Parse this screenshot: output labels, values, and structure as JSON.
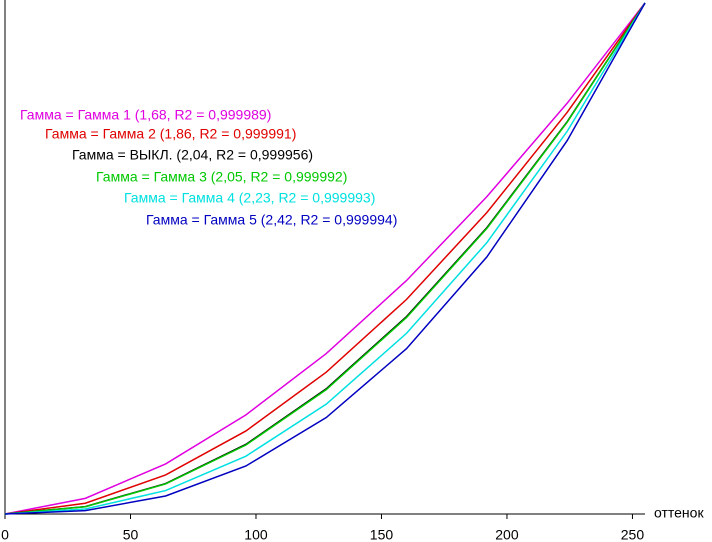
{
  "chart_data": {
    "type": "line",
    "x": [
      0,
      32,
      64,
      96,
      128,
      160,
      192,
      224,
      255
    ],
    "x_label": "оттенок",
    "xlim": [
      0,
      255
    ],
    "xticks": [
      0,
      50,
      100,
      150,
      200,
      250
    ],
    "ylim": [
      0,
      1
    ],
    "series": [
      {
        "name": "Гамма = Гамма 1 (1,68, R2 = 0,999989)",
        "color": "#e000e0",
        "values": [
          0,
          0.0306,
          0.098,
          0.194,
          0.314,
          0.457,
          0.621,
          0.804,
          1
        ]
      },
      {
        "name": "Гамма = Гамма 2 (1,86, R2 = 0,999991)",
        "color": "#e00000",
        "values": [
          0,
          0.0211,
          0.0764,
          0.1625,
          0.2775,
          0.42,
          0.59,
          0.786,
          1
        ]
      },
      {
        "name": "Гамма = ВЫКЛ. (2,04, R2 = 0,999956)",
        "color": "#000000",
        "values": [
          0,
          0.0145,
          0.0596,
          0.1363,
          0.2451,
          0.3864,
          0.5604,
          0.7677,
          1
        ]
      },
      {
        "name": "Гамма = Гамма 3 (2,05, R2 = 0,999992)",
        "color": "#00c800",
        "values": [
          0,
          0.0142,
          0.0588,
          0.135,
          0.2434,
          0.3846,
          0.5589,
          0.7667,
          1
        ]
      },
      {
        "name": "Гамма = Гамма 4 (2,23, R2 = 0,999993)",
        "color": "#00e0e0",
        "values": [
          0,
          0.0098,
          0.0458,
          0.1132,
          0.215,
          0.3537,
          0.5311,
          0.749,
          1
        ]
      },
      {
        "name": "Гамма = Гамма 5 (2,42, R2 = 0,999994)",
        "color": "#0000c0",
        "values": [
          0,
          0.0066,
          0.0353,
          0.094,
          0.1887,
          0.3237,
          0.5032,
          0.7308,
          1
        ]
      }
    ]
  }
}
